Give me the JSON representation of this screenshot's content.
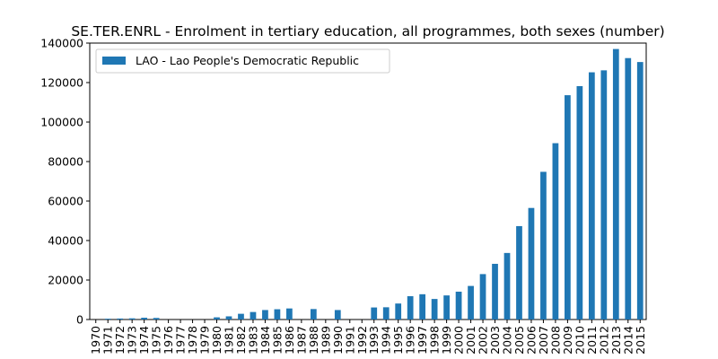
{
  "chart_data": {
    "type": "bar",
    "title": "SE.TER.ENRL - Enrolment in tertiary education, all programmes, both sexes (number)",
    "xlabel": "",
    "ylabel": "",
    "ylim": [
      0,
      140000
    ],
    "yticks": [
      0,
      20000,
      40000,
      60000,
      80000,
      100000,
      120000,
      140000
    ],
    "ytick_labels": [
      "0",
      "20000",
      "40000",
      "60000",
      "80000",
      "100000",
      "120000",
      "140000"
    ],
    "legend": {
      "placement": "top-left",
      "entries": [
        "LAO - Lao People's Democratic Republic"
      ]
    },
    "grid": false,
    "categories": [
      "1970",
      "1971",
      "1972",
      "1973",
      "1974",
      "1975",
      "1976",
      "1977",
      "1978",
      "1979",
      "1980",
      "1981",
      "1982",
      "1983",
      "1984",
      "1985",
      "1986",
      "1987",
      "1988",
      "1989",
      "1990",
      "1991",
      "1992",
      "1993",
      "1994",
      "1995",
      "1996",
      "1997",
      "1998",
      "1999",
      "2000",
      "2001",
      "2002",
      "2003",
      "2004",
      "2005",
      "2006",
      "2007",
      "2008",
      "2009",
      "2010",
      "2011",
      "2012",
      "2013",
      "2014",
      "2015"
    ],
    "series": [
      {
        "name": "LAO - Lao People's Democratic Republic",
        "color": "#1f77b4",
        "values": [
          null,
          400,
          500,
          600,
          900,
          800,
          null,
          null,
          null,
          null,
          1100,
          1600,
          2900,
          3800,
          4800,
          5200,
          5600,
          null,
          5300,
          null,
          4800,
          null,
          null,
          6100,
          6200,
          8100,
          11800,
          12800,
          10400,
          12200,
          14100,
          17000,
          23000,
          28200,
          33700,
          47300,
          56500,
          74800,
          89300,
          113600,
          118200,
          125200,
          126200,
          137000,
          132400,
          130400
        ]
      }
    ]
  }
}
